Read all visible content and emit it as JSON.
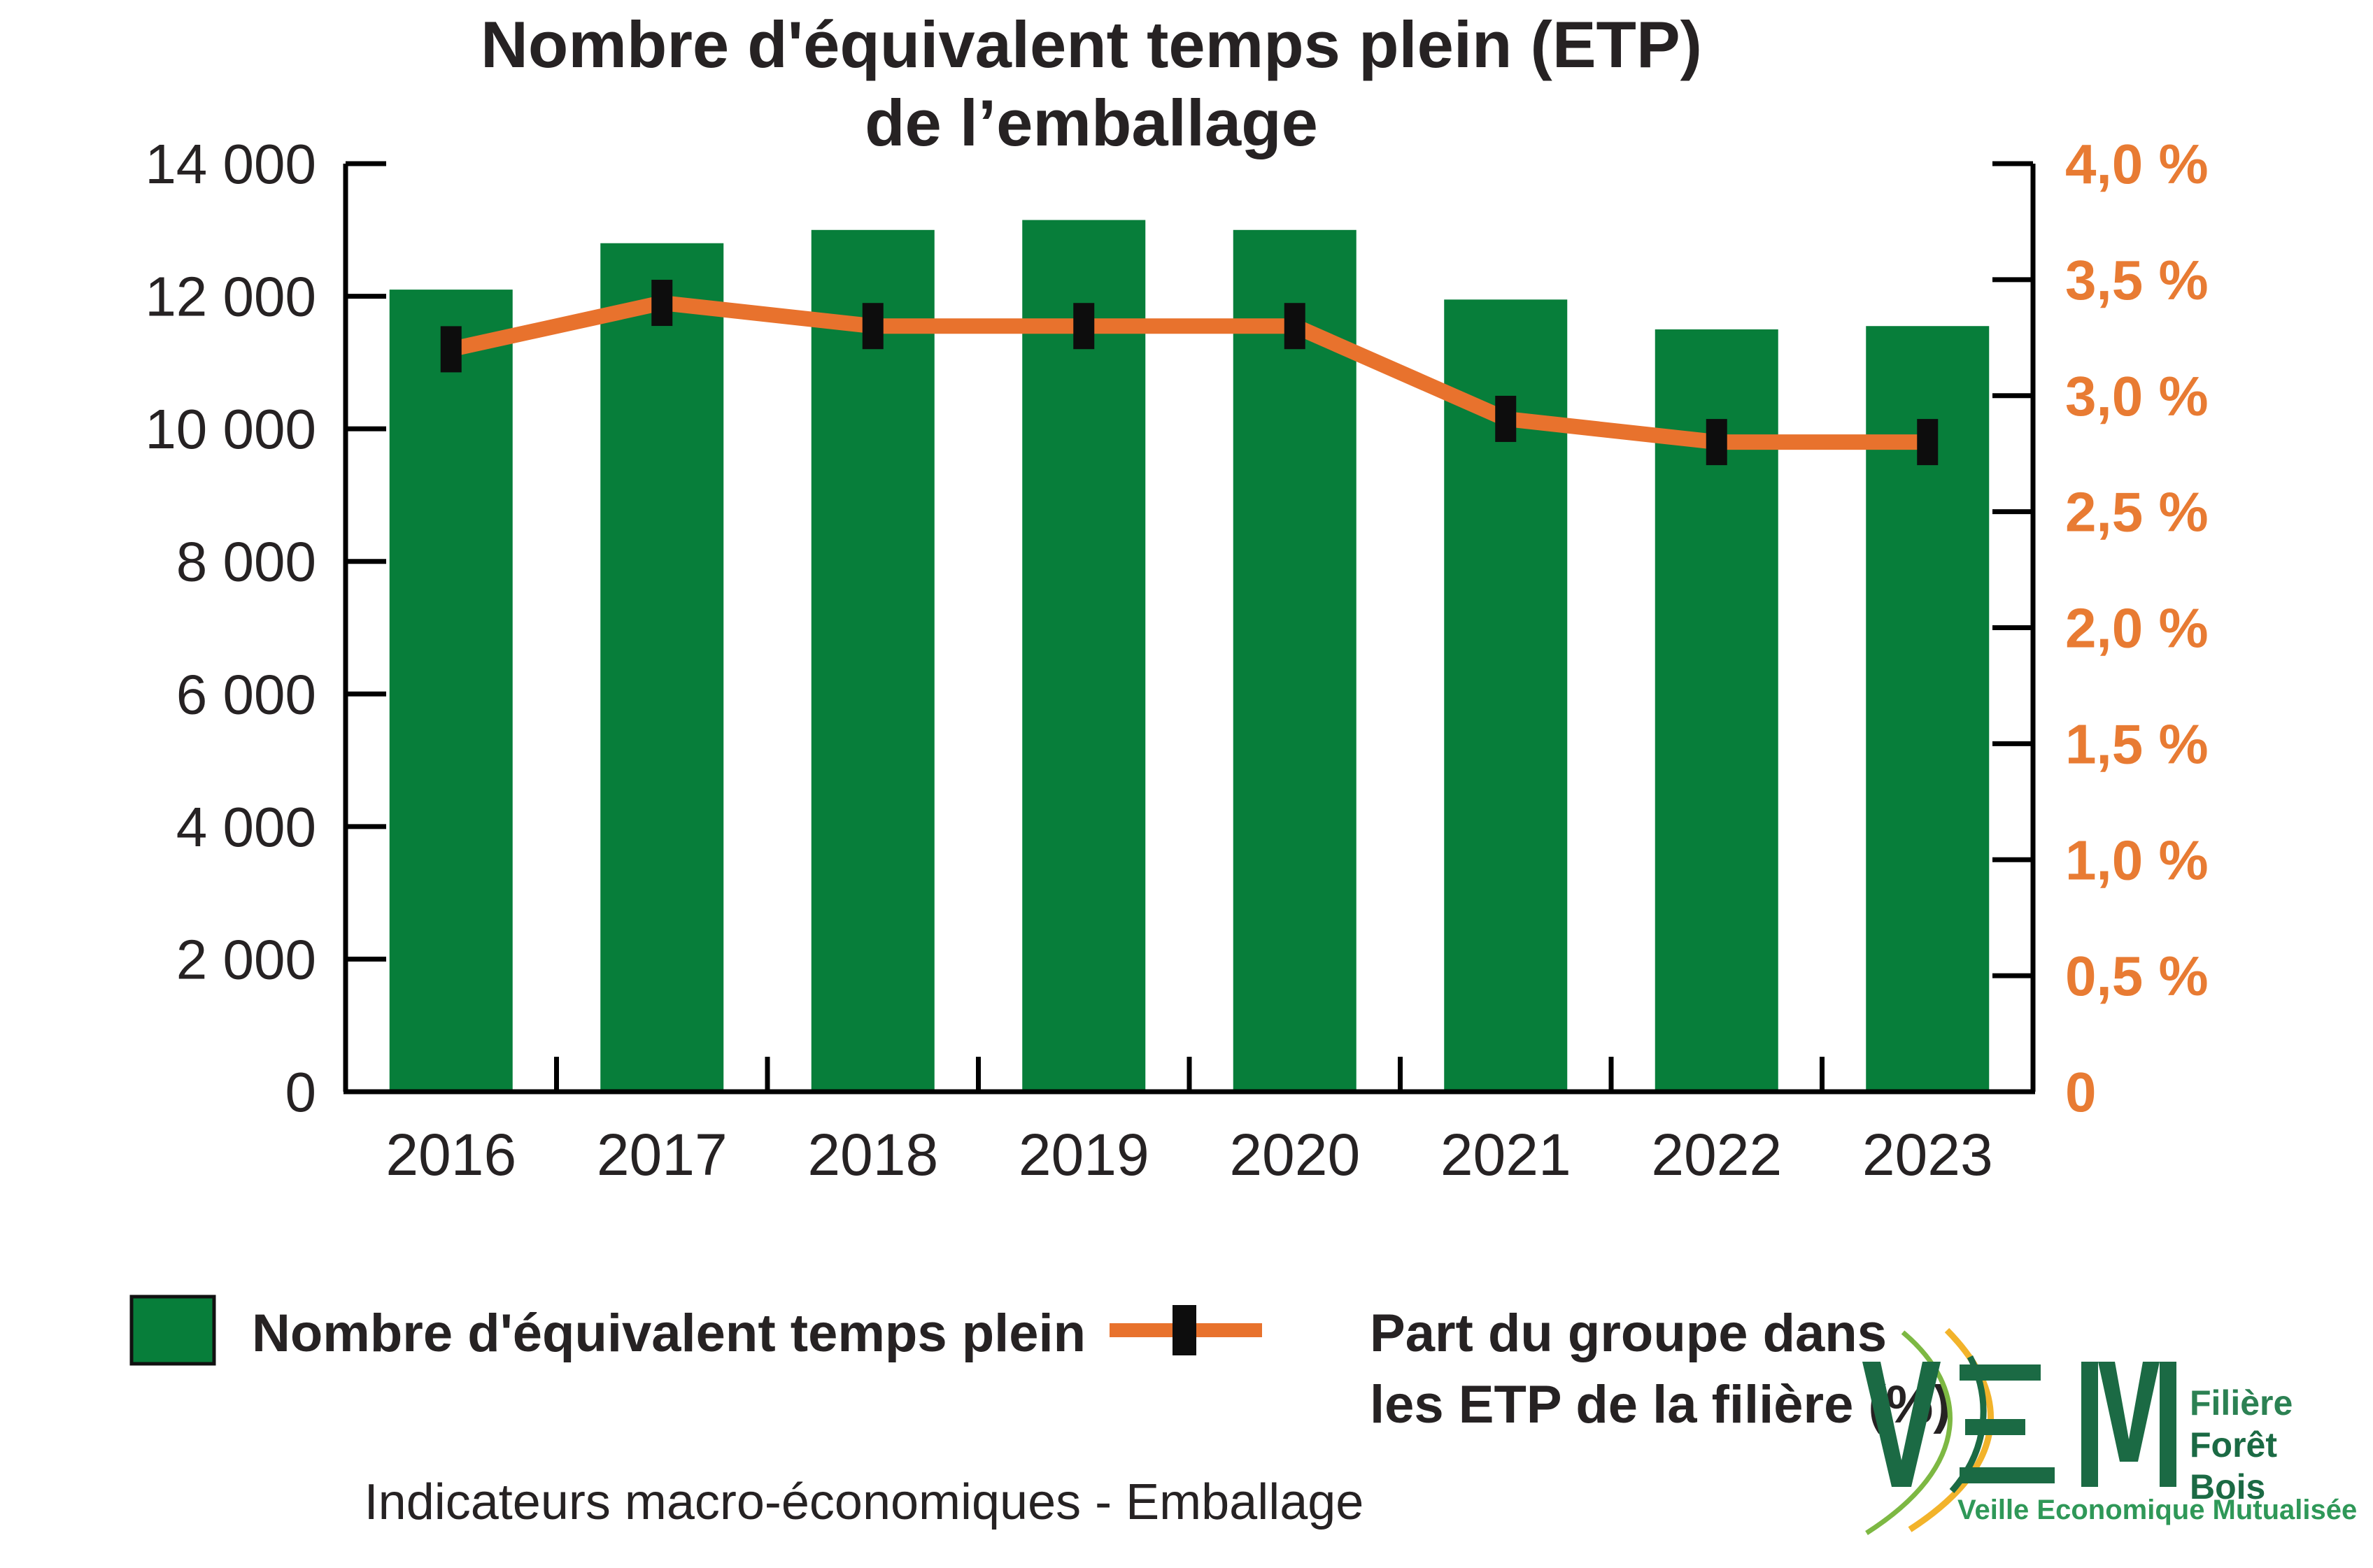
{
  "title": {
    "line1": "Nombre d'équivalent temps plein (ETP)",
    "line2": "de l’emballage"
  },
  "chart_data": {
    "type": "combo",
    "title": "Nombre d'équivalent temps plein (ETP) de l’emballage",
    "categories": [
      "2016",
      "2017",
      "2018",
      "2019",
      "2020",
      "2021",
      "2022",
      "2023"
    ],
    "series": [
      {
        "name": "Nombre d'équivalent temps plein",
        "type": "bar",
        "axis": "left",
        "color": "#077e3a",
        "values": [
          12100,
          12800,
          13000,
          13150,
          13000,
          11950,
          11500,
          11550
        ]
      },
      {
        "name": "Part du groupe dans les ETP de la filière (%)",
        "type": "line",
        "axis": "right",
        "color": "#e8722d",
        "marker": "black-square",
        "marker_color": "#0d0d0d",
        "values": [
          3.2,
          3.4,
          3.3,
          3.3,
          3.3,
          2.9,
          2.8,
          2.8
        ]
      }
    ],
    "left_axis": {
      "range": [
        0,
        14000
      ],
      "step": 2000,
      "tick_labels": [
        "0",
        "2 000",
        "4 000",
        "6 000",
        "8 000",
        "10 000",
        "12 000",
        "14 000"
      ],
      "label_color": "#262223"
    },
    "right_axis": {
      "range": [
        0,
        4
      ],
      "step": 0.5,
      "tick_labels": [
        "0",
        "0,5 %",
        "1,0 %",
        "1,5 %",
        "2,0 %",
        "2,5 %",
        "3,0 %",
        "3,5 %",
        "4,0 %"
      ],
      "label_color": "#e87b33"
    },
    "grid": false,
    "legend_position": "bottom",
    "axis_color": "#000000"
  },
  "legend": {
    "bar_series_label": "Nombre d'équivalent temps plein",
    "line_series_label_line1": "Part du groupe dans",
    "line_series_label_line2": "les ETP de la filière  (%)"
  },
  "footer": {
    "caption": "Indicateurs macro-économiques - Emballage"
  },
  "logo": {
    "acronym": "VEM",
    "side_line1": "Filière",
    "side_line2": "Forêt",
    "side_line3": "Bois",
    "tagline": "Veille Economique Mutualisée",
    "dark_green": "#1b6a44",
    "mid_green": "#2c8153",
    "light_green": "#7db843",
    "yellow": "#f2b32b",
    "tagline_green": "#2f9858"
  }
}
